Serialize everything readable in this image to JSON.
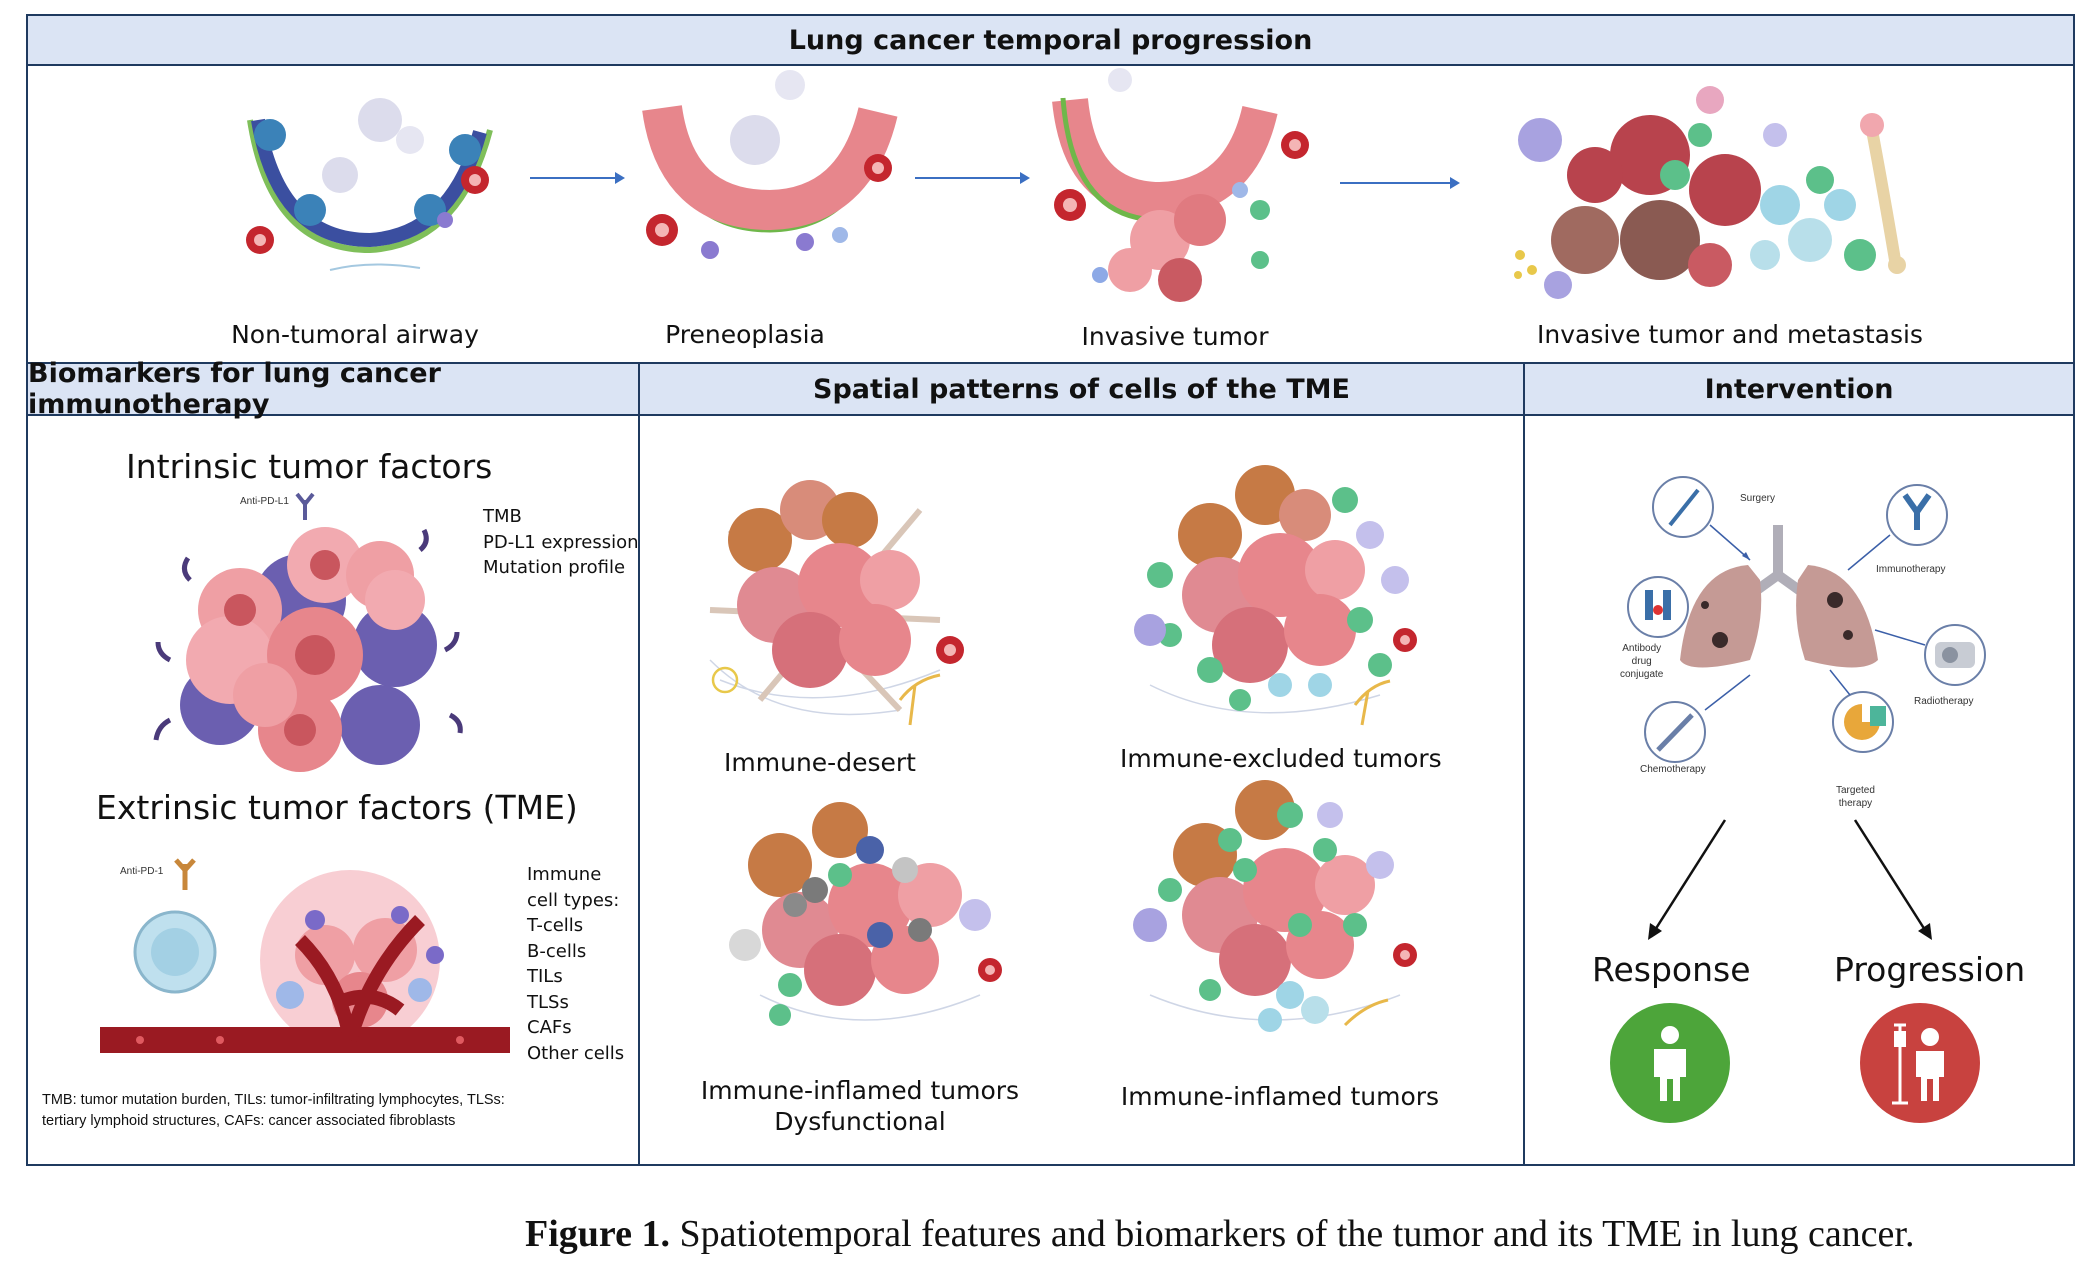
{
  "header_timeline": "Lung cancer temporal progression",
  "stages": [
    {
      "label": "Non-tumoral airway"
    },
    {
      "label": "Preneoplasia"
    },
    {
      "label": "Invasive tumor"
    },
    {
      "label": "Invasive tumor and metastasis"
    }
  ],
  "panels": {
    "biomarkers": {
      "header": "Biomarkers for lung cancer immunotherapy",
      "intrinsic_title": "Intrinsic tumor factors",
      "intrinsic_antibody": "Anti-PD-L1",
      "intrinsic_items": [
        "TMB",
        "PD-L1 expression",
        "Mutation profile"
      ],
      "extrinsic_title": "Extrinsic tumor factors (TME)",
      "extrinsic_antibody": "Anti-PD-1",
      "extrinsic_items": [
        "Immune",
        "cell types:",
        "T-cells",
        "B-cells",
        "TILs",
        "TLSs",
        "CAFs",
        "Other cells"
      ],
      "footnote_line1": "TMB: tumor mutation burden, TILs: tumor-infiltrating lymphocytes, TLSs:",
      "footnote_line2": "tertiary lymphoid structures, CAFs: cancer associated fibroblasts"
    },
    "spatial": {
      "header": "Spatial patterns of cells of the TME",
      "patterns": [
        {
          "label": "Immune-desert"
        },
        {
          "label": "Immune-excluded tumors"
        },
        {
          "label": "Immune-inflamed tumors",
          "label2": "Dysfunctional"
        },
        {
          "label": "Immune-inflamed tumors"
        }
      ]
    },
    "intervention": {
      "header": "Intervention",
      "therapies": {
        "surgery": "Surgery",
        "immunotherapy": "Immunotherapy",
        "adc1": "Antibody",
        "adc2": "drug",
        "adc3": "conjugate",
        "radiotherapy": "Radiotherapy",
        "chemotherapy": "Chemotherapy",
        "targeted1": "Targeted",
        "targeted2": "therapy"
      },
      "outcomes": {
        "response": "Response",
        "progression": "Progression"
      }
    }
  },
  "caption": {
    "number": "Figure 1.",
    "text": " Spatiotemporal features and biomarkers of the tumor and its TME in lung cancer."
  },
  "colors": {
    "frame": "#1f3a5f",
    "header_bg": "#dbe4f4",
    "tumor": "#e7868c",
    "response": "#4da53a",
    "progression": "#c8423f"
  }
}
